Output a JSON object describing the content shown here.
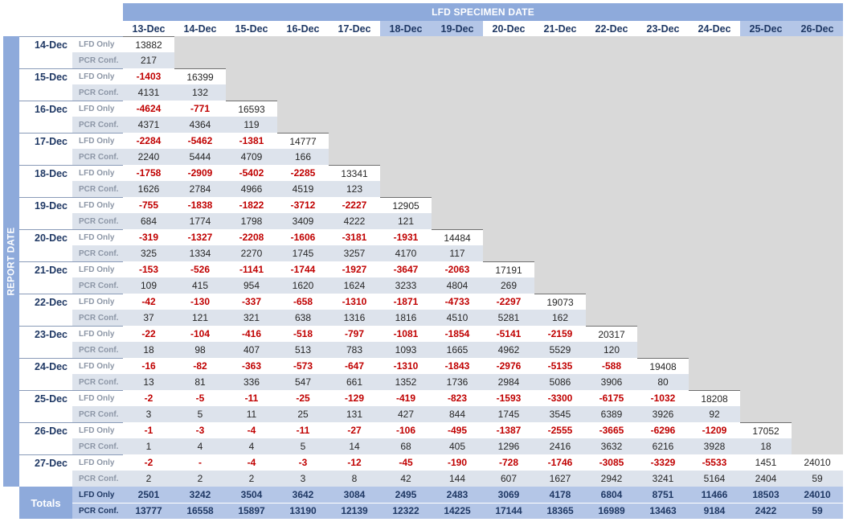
{
  "header": {
    "specimen_title": "LFD SPECIMEN DATE",
    "report_title": "REPORT DATE"
  },
  "columns": [
    "13-Dec",
    "14-Dec",
    "15-Dec",
    "16-Dec",
    "17-Dec",
    "18-Dec",
    "19-Dec",
    "20-Dec",
    "21-Dec",
    "22-Dec",
    "23-Dec",
    "24-Dec",
    "25-Dec",
    "26-Dec"
  ],
  "weekend_columns": [
    5,
    6,
    12,
    13
  ],
  "row_types": {
    "lfd": "LFD Only",
    "pcr": "PCR Conf."
  },
  "rows": [
    {
      "date": "14-Dec",
      "lfd": [
        "13882"
      ],
      "pcr": [
        "217"
      ]
    },
    {
      "date": "15-Dec",
      "lfd": [
        "-1403",
        "16399"
      ],
      "pcr": [
        "4131",
        "132"
      ]
    },
    {
      "date": "16-Dec",
      "lfd": [
        "-4624",
        "-771",
        "16593"
      ],
      "pcr": [
        "4371",
        "4364",
        "119"
      ]
    },
    {
      "date": "17-Dec",
      "lfd": [
        "-2284",
        "-5462",
        "-1381",
        "14777"
      ],
      "pcr": [
        "2240",
        "5444",
        "4709",
        "166"
      ]
    },
    {
      "date": "18-Dec",
      "lfd": [
        "-1758",
        "-2909",
        "-5402",
        "-2285",
        "13341"
      ],
      "pcr": [
        "1626",
        "2784",
        "4966",
        "4519",
        "123"
      ]
    },
    {
      "date": "19-Dec",
      "lfd": [
        "-755",
        "-1838",
        "-1822",
        "-3712",
        "-2227",
        "12905"
      ],
      "pcr": [
        "684",
        "1774",
        "1798",
        "3409",
        "4222",
        "121"
      ]
    },
    {
      "date": "20-Dec",
      "lfd": [
        "-319",
        "-1327",
        "-2208",
        "-1606",
        "-3181",
        "-1931",
        "14484"
      ],
      "pcr": [
        "325",
        "1334",
        "2270",
        "1745",
        "3257",
        "4170",
        "117"
      ]
    },
    {
      "date": "21-Dec",
      "lfd": [
        "-153",
        "-526",
        "-1141",
        "-1744",
        "-1927",
        "-3647",
        "-2063",
        "17191"
      ],
      "pcr": [
        "109",
        "415",
        "954",
        "1620",
        "1624",
        "3233",
        "4804",
        "269"
      ]
    },
    {
      "date": "22-Dec",
      "lfd": [
        "-42",
        "-130",
        "-337",
        "-658",
        "-1310",
        "-1871",
        "-4733",
        "-2297",
        "19073"
      ],
      "pcr": [
        "37",
        "121",
        "321",
        "638",
        "1316",
        "1816",
        "4510",
        "5281",
        "162"
      ]
    },
    {
      "date": "23-Dec",
      "lfd": [
        "-22",
        "-104",
        "-416",
        "-518",
        "-797",
        "-1081",
        "-1854",
        "-5141",
        "-2159",
        "20317"
      ],
      "pcr": [
        "18",
        "98",
        "407",
        "513",
        "783",
        "1093",
        "1665",
        "4962",
        "5529",
        "120"
      ]
    },
    {
      "date": "24-Dec",
      "lfd": [
        "-16",
        "-82",
        "-363",
        "-573",
        "-647",
        "-1310",
        "-1843",
        "-2976",
        "-5135",
        "-588",
        "19408"
      ],
      "pcr": [
        "13",
        "81",
        "336",
        "547",
        "661",
        "1352",
        "1736",
        "2984",
        "5086",
        "3906",
        "80"
      ]
    },
    {
      "date": "25-Dec",
      "lfd": [
        "-2",
        "-5",
        "-11",
        "-25",
        "-129",
        "-419",
        "-823",
        "-1593",
        "-3300",
        "-6175",
        "-1032",
        "18208"
      ],
      "pcr": [
        "3",
        "5",
        "11",
        "25",
        "131",
        "427",
        "844",
        "1745",
        "3545",
        "6389",
        "3926",
        "92"
      ]
    },
    {
      "date": "26-Dec",
      "lfd": [
        "-1",
        "-3",
        "-4",
        "-11",
        "-27",
        "-106",
        "-495",
        "-1387",
        "-2555",
        "-3665",
        "-6296",
        "-1209",
        "17052"
      ],
      "pcr": [
        "1",
        "4",
        "4",
        "5",
        "14",
        "68",
        "405",
        "1296",
        "2416",
        "3632",
        "6216",
        "3928",
        "18"
      ]
    },
    {
      "date": "27-Dec",
      "lfd": [
        "-2",
        "-",
        "-4",
        "-3",
        "-12",
        "-45",
        "-190",
        "-728",
        "-1746",
        "-3085",
        "-3329",
        "-5533",
        "1451",
        "24010"
      ],
      "pcr": [
        "2",
        "2",
        "2",
        "3",
        "8",
        "42",
        "144",
        "607",
        "1627",
        "2942",
        "3241",
        "5164",
        "2404",
        "59"
      ]
    }
  ],
  "totals": {
    "label": "Totals",
    "lfd": [
      "2501",
      "3242",
      "3504",
      "3642",
      "3084",
      "2495",
      "2483",
      "3069",
      "4178",
      "6804",
      "8751",
      "11466",
      "18503",
      "24010"
    ],
    "pcr": [
      "13777",
      "16558",
      "15897",
      "13190",
      "12139",
      "12322",
      "14225",
      "17144",
      "18365",
      "16989",
      "13463",
      "9184",
      "2422",
      "59"
    ]
  }
}
